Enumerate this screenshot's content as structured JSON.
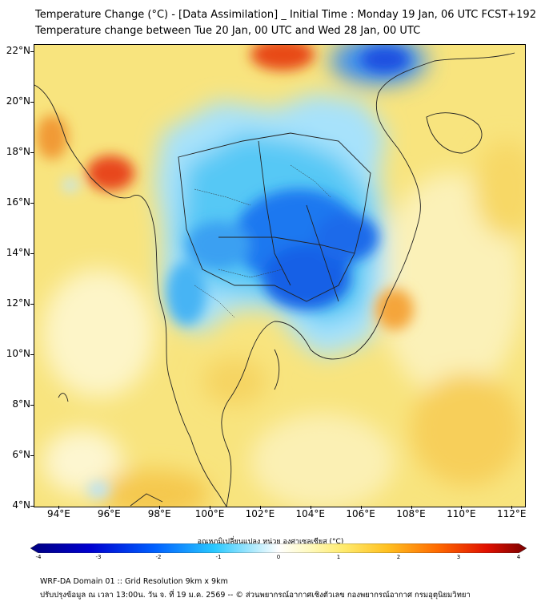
{
  "title_line1": "Temperature Change (°C) - [Data Assimilation] _ Initial Time : Monday 19 Jan, 06 UTC FCST+192",
  "title_line2": "Temperature change between Tue 20 Jan, 00 UTC and Wed 28 Jan, 00 UTC",
  "map": {
    "lat_labels": [
      "22°N",
      "20°N",
      "18°N",
      "16°N",
      "14°N",
      "12°N",
      "10°N",
      "8°N",
      "6°N",
      "4°N"
    ],
    "lon_labels": [
      "94°E",
      "96°E",
      "98°E",
      "100°E",
      "102°E",
      "104°E",
      "106°E",
      "108°E",
      "110°E",
      "112°E"
    ],
    "lat_range": [
      4,
      22.3
    ],
    "lon_range": [
      93,
      112.5
    ],
    "projection": "lat-lon",
    "features": {
      "cold_core": "strong cooling (-2 to -3 °C) over central/NE Thailand and Cambodia",
      "warm_spots": "warming (+2 to +3 °C) near 96°E 17°N, 102°E 22°N, and 106-107°E 12°N"
    }
  },
  "colorbar": {
    "label": "อุณหภูมิเปลี่ยนแปลง หน่วย องศาเซลเซียส (°C)",
    "ticks": [
      "-4",
      "-3",
      "-2",
      "-1",
      "0",
      "1",
      "2",
      "3",
      "4"
    ],
    "range": [
      -4,
      4
    ],
    "colors": [
      "#00007f",
      "#0000ff",
      "#0096ff",
      "#5fd7ff",
      "#cdeeff",
      "#ffffff",
      "#fff8b0",
      "#ffe040",
      "#ff9c00",
      "#ff3c00",
      "#a00000"
    ]
  },
  "footer_line1": "WRF-DA Domain 01 :: Grid Resolution 9km x 9km",
  "footer_line2": "ปรับปรุงข้อมูล ณ เวลา 13:00น. วัน จ. ที่ 19 ม.ค. 2569 -- © ส่วนพยากรณ์อากาศเชิงตัวเลข กองพยากรณ์อากาศ กรมอุตุนิยมวิทยา"
}
